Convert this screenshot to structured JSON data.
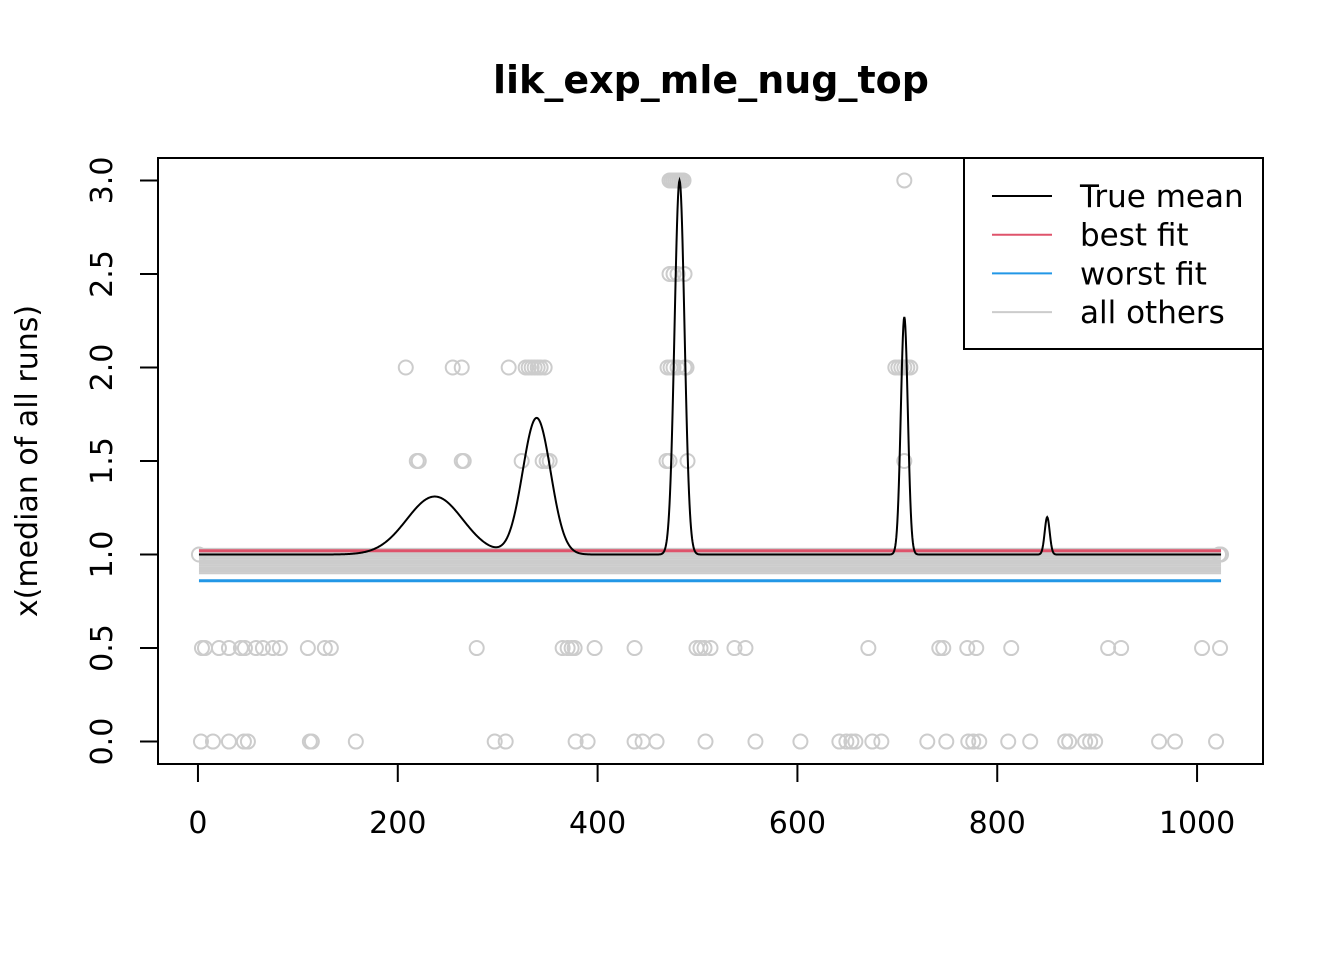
{
  "chart_data": {
    "type": "line",
    "title": "lik_exp_mle_nug_top",
    "xlabel": "",
    "ylabel": "x(median of all runs)",
    "xlim": [
      -40,
      1066
    ],
    "ylim": [
      -0.12,
      3.12
    ],
    "x_ticks": [
      "0",
      "200",
      "400",
      "600",
      "800",
      "1000"
    ],
    "y_ticks": [
      "0.0",
      "0.5",
      "1.0",
      "1.5",
      "2.0",
      "2.5",
      "3.0"
    ],
    "grid": false,
    "legend": {
      "position": "top-right",
      "entries": [
        {
          "label": "True mean",
          "color": "#000000"
        },
        {
          "label": "best fit",
          "color": "#DF536B"
        },
        {
          "label": "worst fit",
          "color": "#2297E6"
        },
        {
          "label": "all others",
          "color": "#cccccc"
        }
      ]
    },
    "true_mean": {
      "baseline": 1.0,
      "x_range": [
        1,
        1024
      ],
      "peaks": [
        {
          "center": 237,
          "height": 0.31,
          "width": 28
        },
        {
          "center": 339,
          "height": 0.73,
          "width": 14
        },
        {
          "center": 482,
          "height": 2.0,
          "width": 5
        },
        {
          "center": 707,
          "height": 1.27,
          "width": 3.5
        },
        {
          "center": 850,
          "height": 0.2,
          "width": 2.5
        }
      ]
    },
    "series": [
      {
        "name": "best fit",
        "color": "#DF536B",
        "x": [
          1,
          1024
        ],
        "y": [
          1.02,
          1.02
        ]
      },
      {
        "name": "worst fit",
        "color": "#2297E6",
        "x": [
          1,
          1024
        ],
        "y": [
          0.86,
          0.86
        ]
      }
    ],
    "others": {
      "color": "#cccccc",
      "x_range": [
        1,
        1024
      ],
      "levels": [
        1.03,
        1.01,
        1.0,
        0.99,
        0.98,
        0.97,
        0.96,
        0.95,
        0.94,
        0.93,
        0.92,
        0.91,
        0.9
      ]
    },
    "points": {
      "color": "#cccccc",
      "groups": [
        {
          "y": 3.0,
          "x": [
            472,
            474,
            476,
            478,
            480,
            482,
            484,
            486,
            707
          ]
        },
        {
          "y": 2.5,
          "x": [
            472,
            476,
            480,
            487
          ]
        },
        {
          "y": 2.0,
          "x": [
            208,
            255,
            264,
            311,
            328,
            331,
            334,
            337,
            340,
            343,
            347,
            470,
            473,
            476,
            480,
            487,
            489,
            698,
            701,
            704,
            707,
            710,
            713
          ]
        },
        {
          "y": 1.5,
          "x": [
            219,
            221,
            264,
            266,
            324,
            345,
            349,
            352,
            469,
            472,
            490,
            707
          ]
        },
        {
          "y": 1.0,
          "x": [
            1,
            1022,
            1024
          ]
        },
        {
          "y": 0.5,
          "x": [
            4,
            7,
            21,
            31,
            43,
            47,
            58,
            65,
            75,
            82,
            110,
            127,
            133,
            279,
            365,
            370,
            374,
            377,
            397,
            437,
            499,
            503,
            507,
            513,
            537,
            548,
            671,
            742,
            746,
            770,
            779,
            814,
            911,
            924,
            1005,
            1023
          ]
        },
        {
          "y": 0.0,
          "x": [
            3,
            15,
            31,
            46,
            50,
            112,
            114,
            158,
            297,
            308,
            378,
            390,
            437,
            445,
            459,
            508,
            558,
            603,
            642,
            649,
            654,
            658,
            675,
            684,
            730,
            749,
            771,
            776,
            782,
            811,
            833,
            868,
            872,
            888,
            893,
            898,
            962,
            978,
            1019
          ]
        }
      ]
    }
  }
}
